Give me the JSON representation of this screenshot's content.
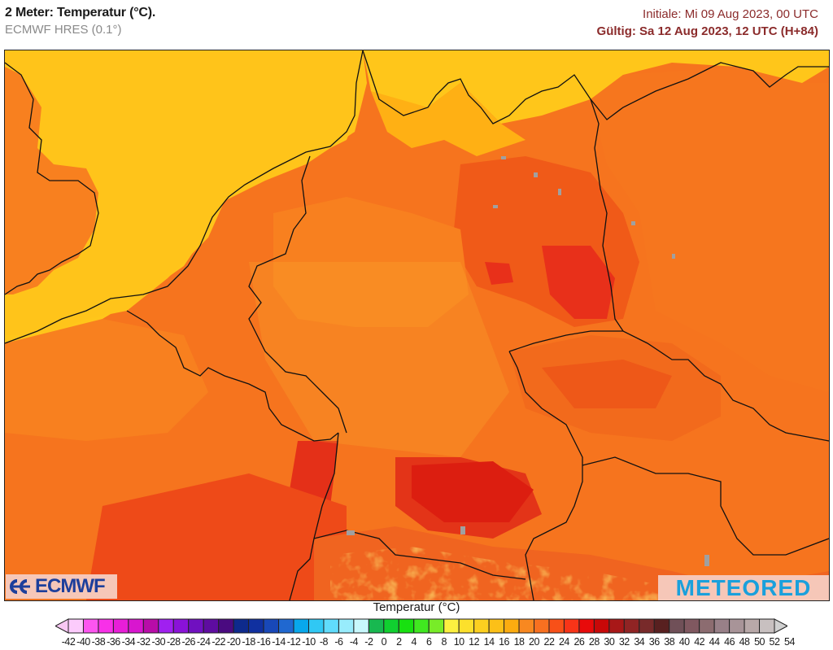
{
  "header": {
    "title": "2 Meter: Temperatur (°C).",
    "model": "ECMWF HRES (0.1°)",
    "init_time": "Initiale: Mi 09 Aug 2023, 00 UTC",
    "valid_time": "Gültig: Sa 12 Aug 2023, 12 UTC (H+84)"
  },
  "map": {
    "region": "Central Europe (Germany, Benelux, Czechia, Alps)",
    "variable": "2 m temperature",
    "units": "°C",
    "field_colors": {
      "sea_cool": "#ffc61a",
      "sea_warm": "#ffb014",
      "land_warm": "#f8801f",
      "land_hot": "#f05a18",
      "land_very_hot": "#e8381a",
      "hotspot": "#d8100e",
      "alps_cool": "#f8d030",
      "coastline": "#111111",
      "lakes": "#a0a0a0"
    }
  },
  "logos": {
    "left": "ECMWF",
    "right": "METEORED"
  },
  "colorbar": {
    "title": "Temperatur (°C)",
    "labels": [
      "-42",
      "-40",
      "-38",
      "-36",
      "-34",
      "-32",
      "-30",
      "-28",
      "-26",
      "-24",
      "-22",
      "-20",
      "-18",
      "-16",
      "-14",
      "-12",
      "-10",
      "-8",
      "-6",
      "-4",
      "-2",
      "0",
      "2",
      "4",
      "6",
      "8",
      "10",
      "12",
      "14",
      "16",
      "18",
      "20",
      "22",
      "24",
      "26",
      "28",
      "30",
      "32",
      "34",
      "36",
      "38",
      "40",
      "42",
      "44",
      "46",
      "48",
      "50",
      "52",
      "54"
    ],
    "under_color": "#f8c8f4",
    "over_color": "#d0d0d0",
    "colors": [
      "#fccbfc",
      "#fc55f0",
      "#f830e8",
      "#e81ed8",
      "#d816cf",
      "#b80ca8",
      "#a020f0",
      "#8a12d8",
      "#7010c0",
      "#5e0ca0",
      "#4a0a80",
      "#0e2a8c",
      "#1030a0",
      "#1848b8",
      "#2068d0",
      "#08a8ec",
      "#30c8f4",
      "#60dcfc",
      "#98ecfc",
      "#c8f8fc",
      "#18b850",
      "#10d030",
      "#18e010",
      "#40e820",
      "#78ec28",
      "#fcf040",
      "#fce02c",
      "#fcd020",
      "#fcc018",
      "#fcac10",
      "#f88820",
      "#f87020",
      "#f85018",
      "#f83418",
      "#e80a0a",
      "#c80808",
      "#a81818",
      "#902424",
      "#782a2a",
      "#582020",
      "#705058",
      "#805860",
      "#8c6c70",
      "#988088",
      "#a89498",
      "#b8a8a8",
      "#c8c0c0"
    ]
  }
}
